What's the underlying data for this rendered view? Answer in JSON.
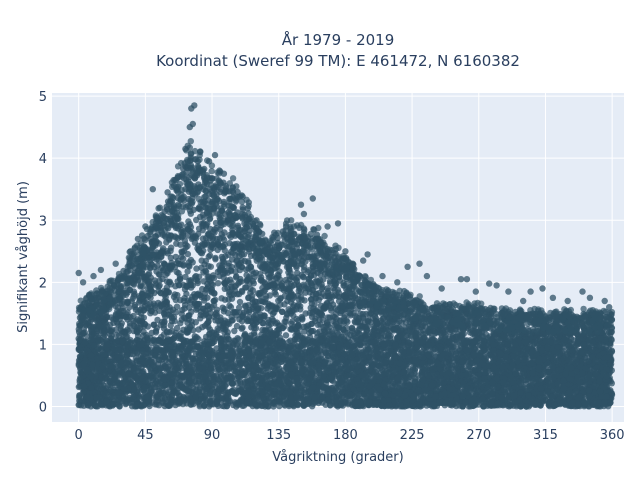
{
  "chart_data": {
    "type": "scatter",
    "title": [
      "År 1979 - 2019",
      "Koordinat (Sweref 99 TM): E 461472, N 6160382"
    ],
    "xlabel": "Vågriktning (grader)",
    "ylabel": "Signifikant våghöjd (m)",
    "xlim": [
      -18,
      368
    ],
    "ylim": [
      -0.25,
      5.05
    ],
    "xticks": [
      0,
      45,
      90,
      135,
      180,
      225,
      270,
      315,
      360
    ],
    "yticks": [
      0,
      1,
      2,
      3,
      4,
      5
    ],
    "grid": true,
    "legend": "none",
    "marker_color": "#2f5266",
    "background": "#e5ecf6",
    "series": [
      {
        "envelope": {
          "x": [
            0,
            10,
            20,
            30,
            40,
            50,
            60,
            70,
            75,
            80,
            90,
            100,
            110,
            120,
            130,
            140,
            150,
            160,
            170,
            180,
            190,
            200,
            210,
            220,
            230,
            240,
            250,
            260,
            270,
            280,
            290,
            300,
            310,
            320,
            330,
            340,
            350,
            360
          ],
          "ymax": [
            1.6,
            1.8,
            1.9,
            2.2,
            2.6,
            2.9,
            3.3,
            3.9,
            4.1,
            4.0,
            3.7,
            3.6,
            3.4,
            2.9,
            2.6,
            2.9,
            2.8,
            2.8,
            2.5,
            2.4,
            2.1,
            1.9,
            1.8,
            1.8,
            1.7,
            1.6,
            1.6,
            1.6,
            1.6,
            1.55,
            1.5,
            1.5,
            1.5,
            1.5,
            1.5,
            1.5,
            1.5,
            1.5
          ]
        },
        "outliers": [
          {
            "x": 76,
            "y": 4.8
          },
          {
            "x": 78,
            "y": 4.85
          },
          {
            "x": 75,
            "y": 4.5
          },
          {
            "x": 77,
            "y": 4.55
          },
          {
            "x": 72,
            "y": 4.15
          },
          {
            "x": 82,
            "y": 4.1
          },
          {
            "x": 88,
            "y": 3.95
          },
          {
            "x": 92,
            "y": 4.05
          },
          {
            "x": 95,
            "y": 3.8
          },
          {
            "x": 98,
            "y": 3.75
          },
          {
            "x": 50,
            "y": 3.5
          },
          {
            "x": 65,
            "y": 3.65
          },
          {
            "x": 150,
            "y": 3.25
          },
          {
            "x": 158,
            "y": 3.35
          },
          {
            "x": 152,
            "y": 3.1
          },
          {
            "x": 168,
            "y": 2.9
          },
          {
            "x": 175,
            "y": 2.95
          },
          {
            "x": 180,
            "y": 2.5
          },
          {
            "x": 195,
            "y": 2.45
          },
          {
            "x": 185,
            "y": 2.3
          },
          {
            "x": 205,
            "y": 2.1
          },
          {
            "x": 230,
            "y": 2.3
          },
          {
            "x": 222,
            "y": 2.25
          },
          {
            "x": 235,
            "y": 2.1
          },
          {
            "x": 258,
            "y": 2.05
          },
          {
            "x": 262,
            "y": 2.05
          },
          {
            "x": 282,
            "y": 1.95
          },
          {
            "x": 277,
            "y": 1.98
          },
          {
            "x": 305,
            "y": 1.85
          },
          {
            "x": 313,
            "y": 1.9
          },
          {
            "x": 340,
            "y": 1.85
          },
          {
            "x": 345,
            "y": 1.75
          },
          {
            "x": 355,
            "y": 1.7
          },
          {
            "x": 320,
            "y": 1.75
          },
          {
            "x": 300,
            "y": 1.7
          },
          {
            "x": 0,
            "y": 2.15
          },
          {
            "x": 3,
            "y": 2.0
          },
          {
            "x": 10,
            "y": 2.1
          },
          {
            "x": 15,
            "y": 2.2
          },
          {
            "x": 25,
            "y": 2.3
          },
          {
            "x": 35,
            "y": 2.5
          },
          {
            "x": 40,
            "y": 2.7
          },
          {
            "x": 45,
            "y": 2.9
          },
          {
            "x": 55,
            "y": 3.0
          },
          {
            "x": 60,
            "y": 3.45
          },
          {
            "x": 110,
            "y": 3.4
          },
          {
            "x": 120,
            "y": 3.0
          },
          {
            "x": 132,
            "y": 2.8
          },
          {
            "x": 140,
            "y": 2.9
          },
          {
            "x": 192,
            "y": 2.35
          },
          {
            "x": 215,
            "y": 2.0
          },
          {
            "x": 245,
            "y": 1.9
          },
          {
            "x": 268,
            "y": 1.85
          },
          {
            "x": 290,
            "y": 1.85
          },
          {
            "x": 330,
            "y": 1.7
          },
          {
            "x": 358,
            "y": 1.6
          }
        ]
      }
    ]
  }
}
